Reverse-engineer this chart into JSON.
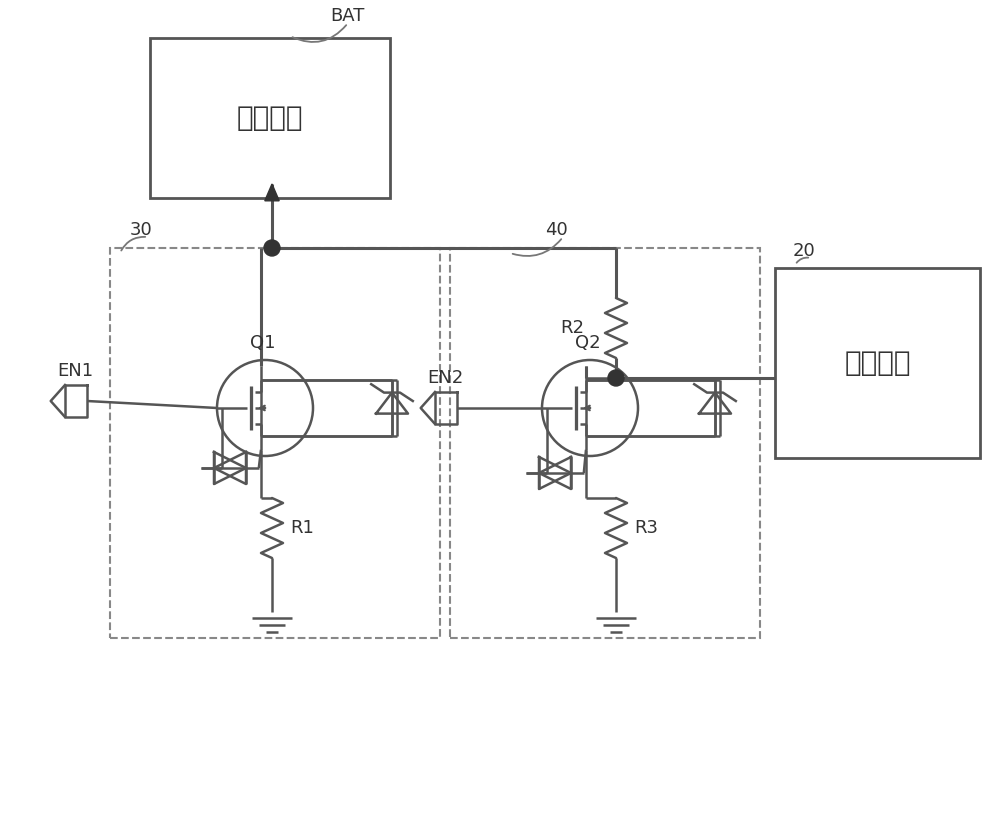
{
  "bg": "#ffffff",
  "lc": "#555555",
  "lw": 1.8,
  "tlw": 2.2,
  "dlw": 1.5,
  "bat_label": "待测电池",
  "ctrl_label": "主控制器",
  "bat_tag": "BAT",
  "tag20": "20",
  "tag30": "30",
  "tag40": "40",
  "q1_label": "Q1",
  "q2_label": "Q2",
  "r1_label": "R1",
  "r2_label": "R2",
  "r3_label": "R3",
  "en1_label": "EN1",
  "en2_label": "EN2",
  "font_cn": "STSong",
  "font_size_cn": 18,
  "font_size_tag": 13,
  "font_size_comp": 12
}
